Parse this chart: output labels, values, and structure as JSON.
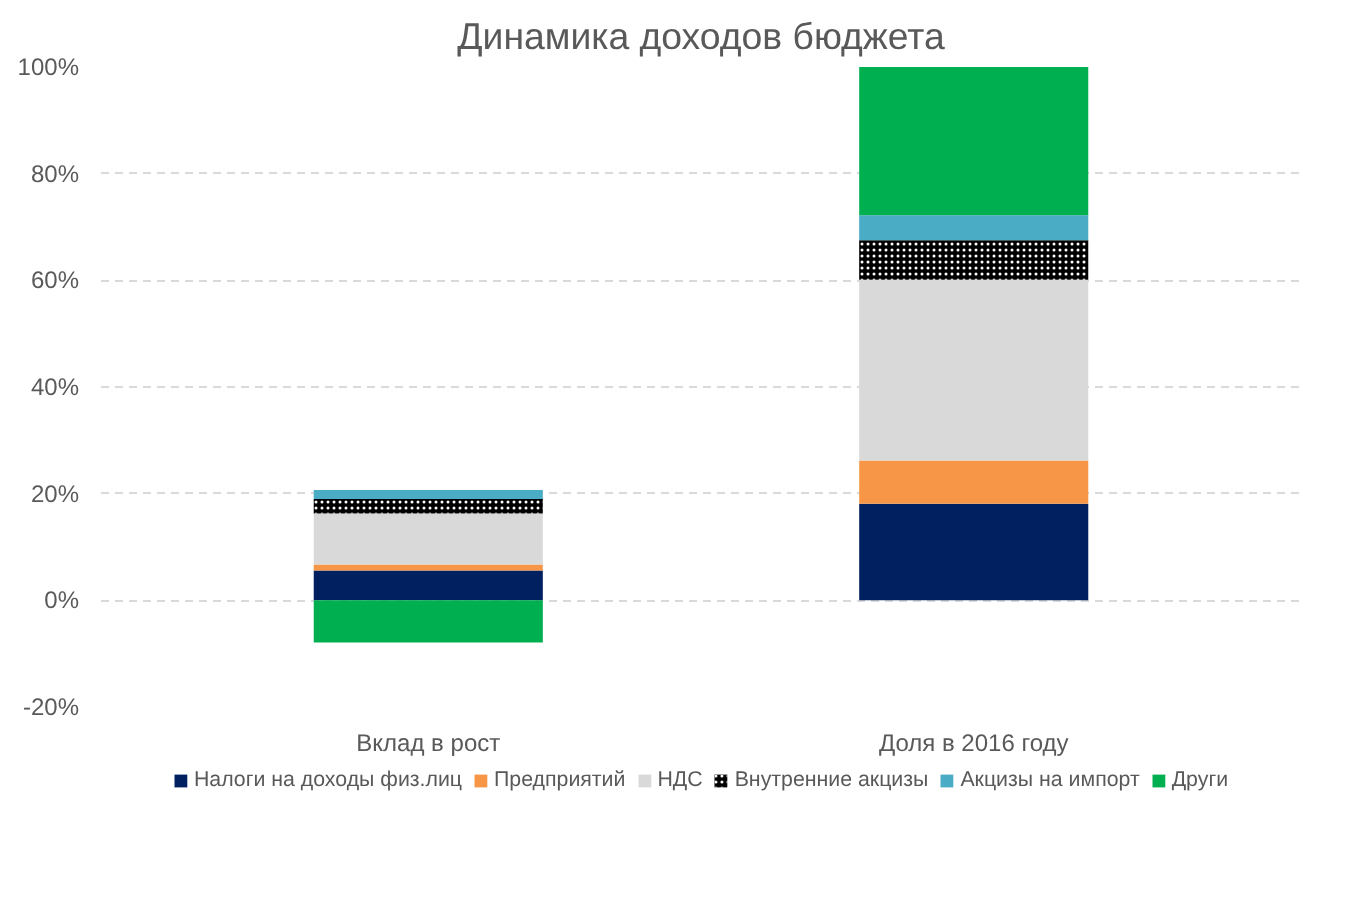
{
  "chart_data": {
    "type": "bar",
    "title": "Динамика доходов бюджета",
    "stacked": true,
    "categories": [
      "Вклад в рост",
      "Доля в 2016 году"
    ],
    "series": [
      {
        "name": "Налоги на доходы физ.лиц",
        "color": "#002060",
        "values": [
          5.6,
          18.1
        ]
      },
      {
        "name": "Предприятий",
        "color": "#f79646",
        "values": [
          1.1,
          8.1
        ]
      },
      {
        "name": "НДС",
        "color": "#d9d9d9",
        "values": [
          9.6,
          33.9
        ]
      },
      {
        "name": "Внутренние акцизы",
        "color": "#000000",
        "values": [
          2.7,
          7.4
        ]
      },
      {
        "name": "Акцизы на импорт",
        "color": "#4bacc6",
        "values": [
          1.7,
          4.7
        ]
      },
      {
        "name": "Други",
        "color": "#00b050",
        "values": [
          -7.9,
          27.9
        ]
      }
    ],
    "ylim": [
      -20,
      100
    ],
    "yticks": [
      {
        "value": -20,
        "label": "-20%"
      },
      {
        "value": 0,
        "label": "0%"
      },
      {
        "value": 20,
        "label": "20%"
      },
      {
        "value": 40,
        "label": "40%"
      },
      {
        "value": 60,
        "label": "60%"
      },
      {
        "value": 80,
        "label": "80%"
      },
      {
        "value": 100,
        "label": "100%"
      }
    ],
    "grid": "y",
    "legend": "bottom"
  }
}
